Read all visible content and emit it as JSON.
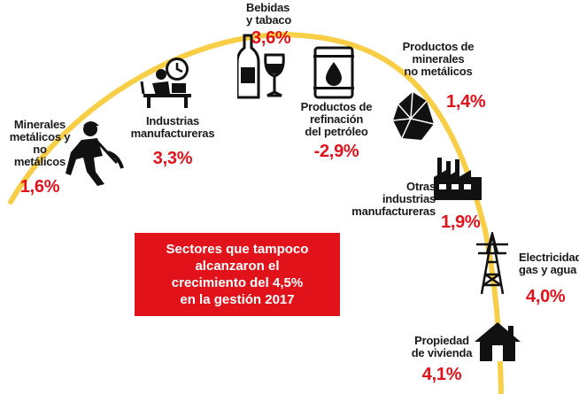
{
  "colors": {
    "arc": "#f7ce45",
    "value": "#e2121b",
    "text": "#1a1a1a",
    "callout_bg": "#e2121b",
    "callout_text": "#ffffff"
  },
  "callout": {
    "text": "Sectores que tampoco\nalcanzaron el\ncrecimiento del 4,5%\nen la gestión 2017"
  },
  "sectors": [
    {
      "name": "Minerales\nmetálicos y\nno metálicos",
      "value": "1,6%",
      "icon": "miner-pickaxe-icon"
    },
    {
      "name": "Industrias\nmanufactureras",
      "value": "3,3%",
      "icon": "desk-worker-clock-icon"
    },
    {
      "name": "Bebidas\ny tabaco",
      "value": "3,6%",
      "icon": "bottle-wine-glass-icon"
    },
    {
      "name": "Productos de\nrefinación\ndel petróleo",
      "value": "-2,9%",
      "icon": "oil-barrel-icon"
    },
    {
      "name": "Productos de\nminerales\nno metálicos",
      "value": "1,4%",
      "icon": "mineral-crystal-icon"
    },
    {
      "name": "Otras\nindustrias\nmanufactureras",
      "value": "1,9%",
      "icon": "factory-icon"
    },
    {
      "name": "Electricidad,\ngas y agua",
      "value": "4,0%",
      "icon": "power-tower-icon"
    },
    {
      "name": "Propiedad\nde vivienda",
      "value": "4,1%",
      "icon": "house-icon"
    }
  ]
}
